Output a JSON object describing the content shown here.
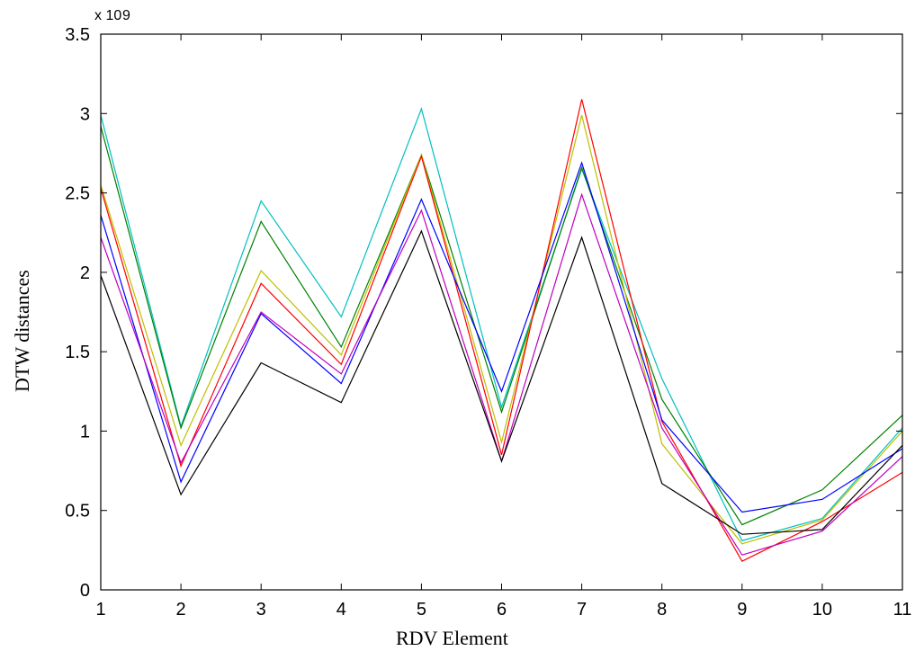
{
  "chart_data": {
    "type": "line",
    "xlabel": "RDV Element",
    "ylabel": "DTW distances",
    "multiplier_label": "x 10",
    "multiplier_exponent": "9",
    "x": [
      1,
      2,
      3,
      4,
      5,
      6,
      7,
      8,
      9,
      10,
      11
    ],
    "xlim": [
      1,
      11
    ],
    "ylim": [
      0,
      3.5
    ],
    "x_ticks": [
      "1",
      "2",
      "3",
      "4",
      "5",
      "6",
      "7",
      "8",
      "9",
      "10",
      "11"
    ],
    "y_ticks": [
      "0",
      "0.5",
      "1",
      "1.5",
      "2",
      "2.5",
      "3",
      "3.5"
    ],
    "grid": false,
    "series": [
      {
        "color": "#00bfbf",
        "values": [
          2.99,
          1.03,
          2.45,
          1.72,
          3.03,
          1.15,
          2.65,
          1.33,
          0.31,
          0.45,
          1.02
        ]
      },
      {
        "color": "#008000",
        "values": [
          2.92,
          1.02,
          2.32,
          1.53,
          2.74,
          1.12,
          2.66,
          1.2,
          0.41,
          0.63,
          1.1
        ]
      },
      {
        "color": "#bfbf00",
        "values": [
          2.55,
          0.91,
          2.01,
          1.48,
          2.74,
          0.93,
          2.99,
          0.92,
          0.29,
          0.44,
          1.0
        ]
      },
      {
        "color": "#ff0000",
        "values": [
          2.53,
          0.78,
          1.93,
          1.42,
          2.73,
          0.85,
          3.09,
          1.06,
          0.18,
          0.43,
          0.74
        ]
      },
      {
        "color": "#0000ff",
        "values": [
          2.36,
          0.68,
          1.74,
          1.3,
          2.46,
          1.25,
          2.69,
          1.07,
          0.49,
          0.57,
          0.89
        ]
      },
      {
        "color": "#bf00bf",
        "values": [
          2.22,
          0.8,
          1.75,
          1.36,
          2.39,
          0.81,
          2.49,
          1.02,
          0.22,
          0.37,
          0.84
        ]
      },
      {
        "color": "#000000",
        "values": [
          1.98,
          0.6,
          1.43,
          1.18,
          2.26,
          0.81,
          2.22,
          0.67,
          0.35,
          0.38,
          0.91
        ]
      }
    ]
  }
}
